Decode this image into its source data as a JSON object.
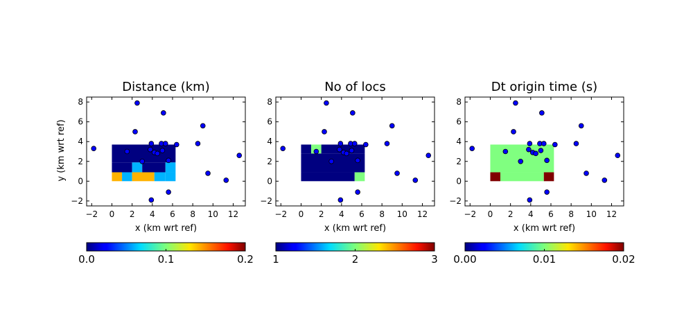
{
  "figure": {
    "shared_ylabel": "y (km wrt ref)"
  },
  "station_points": [
    [
      -1.8,
      3.3
    ],
    [
      1.5,
      3.0
    ],
    [
      2.3,
      5.0
    ],
    [
      2.5,
      7.9
    ],
    [
      3.0,
      2.0
    ],
    [
      3.8,
      3.2
    ],
    [
      3.9,
      3.8
    ],
    [
      3.9,
      -1.9
    ],
    [
      4.2,
      2.9
    ],
    [
      4.5,
      2.8
    ],
    [
      4.9,
      3.8
    ],
    [
      5.0,
      3.1
    ],
    [
      5.1,
      6.9
    ],
    [
      5.3,
      3.8
    ],
    [
      5.6,
      2.1
    ],
    [
      5.6,
      -1.1
    ],
    [
      6.4,
      3.7
    ],
    [
      8.5,
      3.8
    ],
    [
      9.0,
      5.6
    ],
    [
      9.5,
      0.8
    ],
    [
      11.3,
      0.1
    ],
    [
      12.6,
      2.6
    ]
  ],
  "chart_data": [
    {
      "type": "heatmap",
      "title": "Distance (km)",
      "xlabel": "x (km wrt ref)",
      "ylabel": "y (km wrt ref)",
      "xlim": [
        -2.5,
        13.2
      ],
      "ylim": [
        -2.5,
        8.5
      ],
      "xticks": [
        -2,
        0,
        2,
        4,
        6,
        8,
        10,
        12
      ],
      "yticks": [
        -2,
        0,
        2,
        4,
        6,
        8
      ],
      "colormap": "jet",
      "clim": [
        0.0,
        0.2
      ],
      "colorbar_ticks": [
        0.0,
        0.1,
        0.2
      ],
      "colorbar_tick_labels": [
        "0.0",
        "0.1",
        "0.2"
      ],
      "grid": false,
      "cells": [
        {
          "x": [
            0,
            1
          ],
          "y": [
            0,
            0.9
          ],
          "value": 0.14
        },
        {
          "x": [
            1,
            2
          ],
          "y": [
            0,
            0.9
          ],
          "value": 0.06
        },
        {
          "x": [
            2,
            4.2
          ],
          "y": [
            0,
            0.9
          ],
          "value": 0.14
        },
        {
          "x": [
            4.2,
            5.3
          ],
          "y": [
            0,
            0.9
          ],
          "value": 0.06
        },
        {
          "x": [
            5.3,
            6.3
          ],
          "y": [
            0,
            0.9
          ],
          "value": 0.06
        },
        {
          "x": [
            0,
            2
          ],
          "y": [
            0.9,
            1.9
          ],
          "value": 0.0
        },
        {
          "x": [
            2,
            3
          ],
          "y": [
            0.9,
            1.9
          ],
          "value": 0.06
        },
        {
          "x": [
            3,
            5.3
          ],
          "y": [
            0.9,
            1.9
          ],
          "value": 0.0
        },
        {
          "x": [
            5.3,
            6.3
          ],
          "y": [
            0.9,
            1.9
          ],
          "value": 0.06
        },
        {
          "x": [
            0,
            6.3
          ],
          "y": [
            1.9,
            3.7
          ],
          "value": 0.0
        }
      ]
    },
    {
      "type": "heatmap",
      "title": "No of locs",
      "xlabel": "x (km wrt ref)",
      "ylabel": "",
      "xlim": [
        -2.5,
        13.2
      ],
      "ylim": [
        -2.5,
        8.5
      ],
      "xticks": [
        -2,
        0,
        2,
        4,
        6,
        8,
        10,
        12
      ],
      "yticks": [
        -2,
        0,
        2,
        4,
        6,
        8
      ],
      "colormap": "jet",
      "clim": [
        1,
        3
      ],
      "colorbar_ticks": [
        1,
        2,
        3
      ],
      "colorbar_tick_labels": [
        "1",
        "2",
        "3"
      ],
      "grid": false,
      "cells": [
        {
          "x": [
            0,
            5.3
          ],
          "y": [
            0,
            0.9
          ],
          "value": 1
        },
        {
          "x": [
            5.3,
            6.3
          ],
          "y": [
            0,
            0.9
          ],
          "value": 2
        },
        {
          "x": [
            0,
            6.3
          ],
          "y": [
            0.9,
            2.8
          ],
          "value": 1
        },
        {
          "x": [
            0,
            1.0
          ],
          "y": [
            2.8,
            3.7
          ],
          "value": 1
        },
        {
          "x": [
            1.0,
            2.0
          ],
          "y": [
            2.8,
            3.7
          ],
          "value": 2
        },
        {
          "x": [
            2.0,
            6.3
          ],
          "y": [
            2.8,
            3.7
          ],
          "value": 1
        }
      ]
    },
    {
      "type": "heatmap",
      "title": "Dt origin time (s)",
      "xlabel": "x (km wrt ref)",
      "ylabel": "",
      "xlim": [
        -2.5,
        13.2
      ],
      "ylim": [
        -2.5,
        8.5
      ],
      "xticks": [
        -2,
        0,
        2,
        4,
        6,
        8,
        10,
        12
      ],
      "yticks": [
        -2,
        0,
        2,
        4,
        6,
        8
      ],
      "colormap": "jet",
      "clim": [
        0.0,
        0.02
      ],
      "colorbar_ticks": [
        0.0,
        0.01,
        0.02
      ],
      "colorbar_tick_labels": [
        "0.00",
        "0.01",
        "0.02"
      ],
      "grid": false,
      "cells": [
        {
          "x": [
            0,
            1.0
          ],
          "y": [
            0,
            0.9
          ],
          "value": 0.02
        },
        {
          "x": [
            1.0,
            5.3
          ],
          "y": [
            0,
            0.9
          ],
          "value": 0.01
        },
        {
          "x": [
            5.3,
            6.3
          ],
          "y": [
            0,
            0.9
          ],
          "value": 0.02
        },
        {
          "x": [
            0,
            6.3
          ],
          "y": [
            0.9,
            3.7
          ],
          "value": 0.01
        }
      ]
    }
  ]
}
